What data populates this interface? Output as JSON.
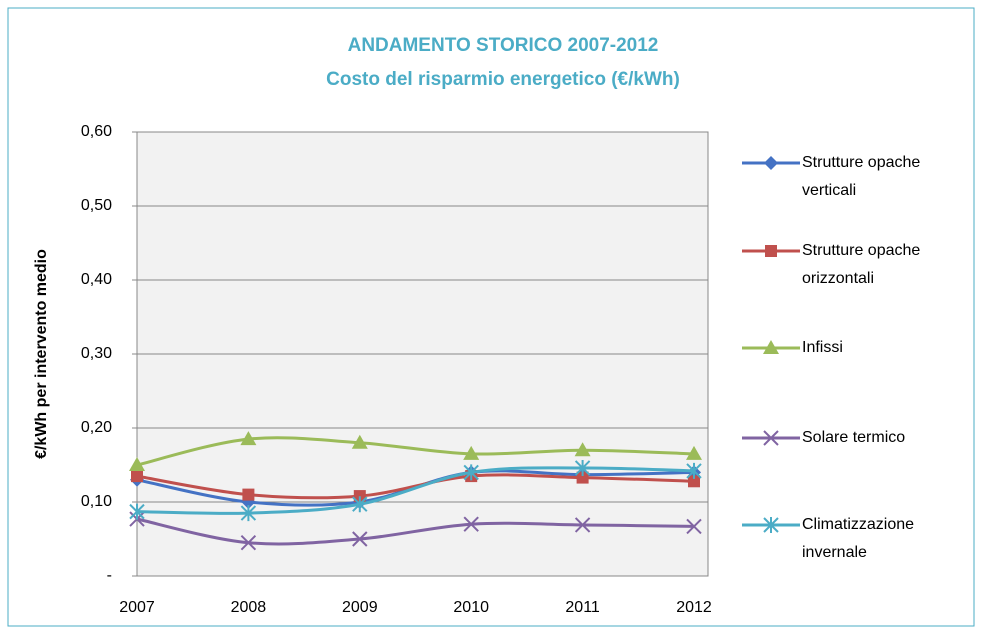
{
  "chart_data": {
    "type": "line",
    "title": "ANDAMENTO STORICO 2007-2012",
    "subtitle": "Costo del risparmio energetico (€/kWh)",
    "y_label": "€/kWh per intervento medio",
    "categories": [
      "2007",
      "2008",
      "2009",
      "2010",
      "2011",
      "2012"
    ],
    "series": [
      {
        "name": "Strutture opache verticali",
        "color": "#4472c4",
        "marker": "diamond",
        "values": [
          0.13,
          0.1,
          0.1,
          0.14,
          0.137,
          0.14
        ]
      },
      {
        "name": "Strutture opache orizzontali",
        "color": "#c0504d",
        "marker": "square",
        "values": [
          0.135,
          0.11,
          0.108,
          0.135,
          0.133,
          0.128
        ]
      },
      {
        "name": "Infissi",
        "color": "#9bbb59",
        "marker": "triangle",
        "values": [
          0.15,
          0.185,
          0.18,
          0.165,
          0.17,
          0.165
        ]
      },
      {
        "name": "Solare termico",
        "color": "#8064a2",
        "marker": "x",
        "values": [
          0.077,
          0.045,
          0.05,
          0.07,
          0.069,
          0.067
        ]
      },
      {
        "name": "Climatizzazione invernale",
        "color": "#4bacc6",
        "marker": "star",
        "values": [
          0.087,
          0.085,
          0.097,
          0.14,
          0.146,
          0.142
        ]
      }
    ],
    "ylim": [
      0,
      0.6
    ],
    "yticks": [
      {
        "value": 0,
        "label": "-"
      },
      {
        "value": 0.1,
        "label": "0,10"
      },
      {
        "value": 0.2,
        "label": "0,20"
      },
      {
        "value": 0.3,
        "label": "0,30"
      },
      {
        "value": 0.4,
        "label": "0,40"
      },
      {
        "value": 0.5,
        "label": "0,50"
      },
      {
        "value": 0.6,
        "label": "0,60"
      }
    ],
    "grid": true,
    "smooth": true,
    "legend": "right"
  }
}
